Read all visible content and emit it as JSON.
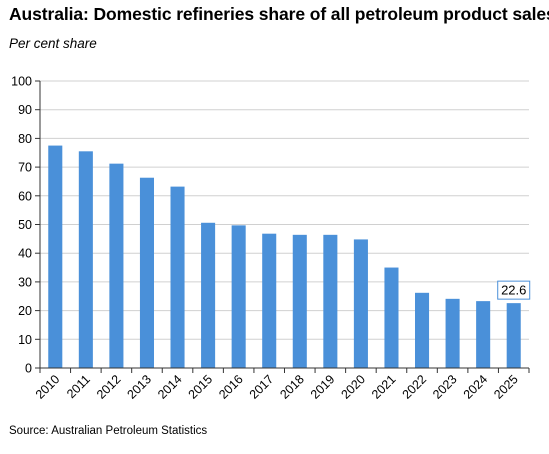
{
  "title": "Australia: Domestic refineries share of all petroleum product sales",
  "subtitle": "Per cent share",
  "source": "Source: Australian Petroleum Statistics",
  "colors": {
    "bar": "#4a90d9",
    "grid": "#d0d0d0",
    "axis": "#333333",
    "label_border": "#4a90d9"
  },
  "chart_data": {
    "type": "bar",
    "title": "Australia: Domestic refineries share of all petroleum product sales",
    "subtitle": "Per cent share",
    "xlabel": "",
    "ylabel": "",
    "ylim": [
      0,
      100
    ],
    "yticks": [
      0,
      10,
      20,
      30,
      40,
      50,
      60,
      70,
      80,
      90,
      100
    ],
    "grid": true,
    "legend": "none",
    "categories": [
      "2010",
      "2011",
      "2012",
      "2013",
      "2014",
      "2015",
      "2016",
      "2017",
      "2018",
      "2019",
      "2020",
      "2021",
      "2022",
      "2023",
      "2024",
      "2025"
    ],
    "values": [
      77.5,
      75.5,
      71.2,
      66.3,
      63.2,
      50.6,
      49.7,
      46.8,
      46.4,
      46.4,
      44.8,
      35.0,
      26.2,
      24.1,
      23.3,
      22.6
    ],
    "data_labels": [
      {
        "category": "2025",
        "text": "22.6"
      }
    ]
  }
}
